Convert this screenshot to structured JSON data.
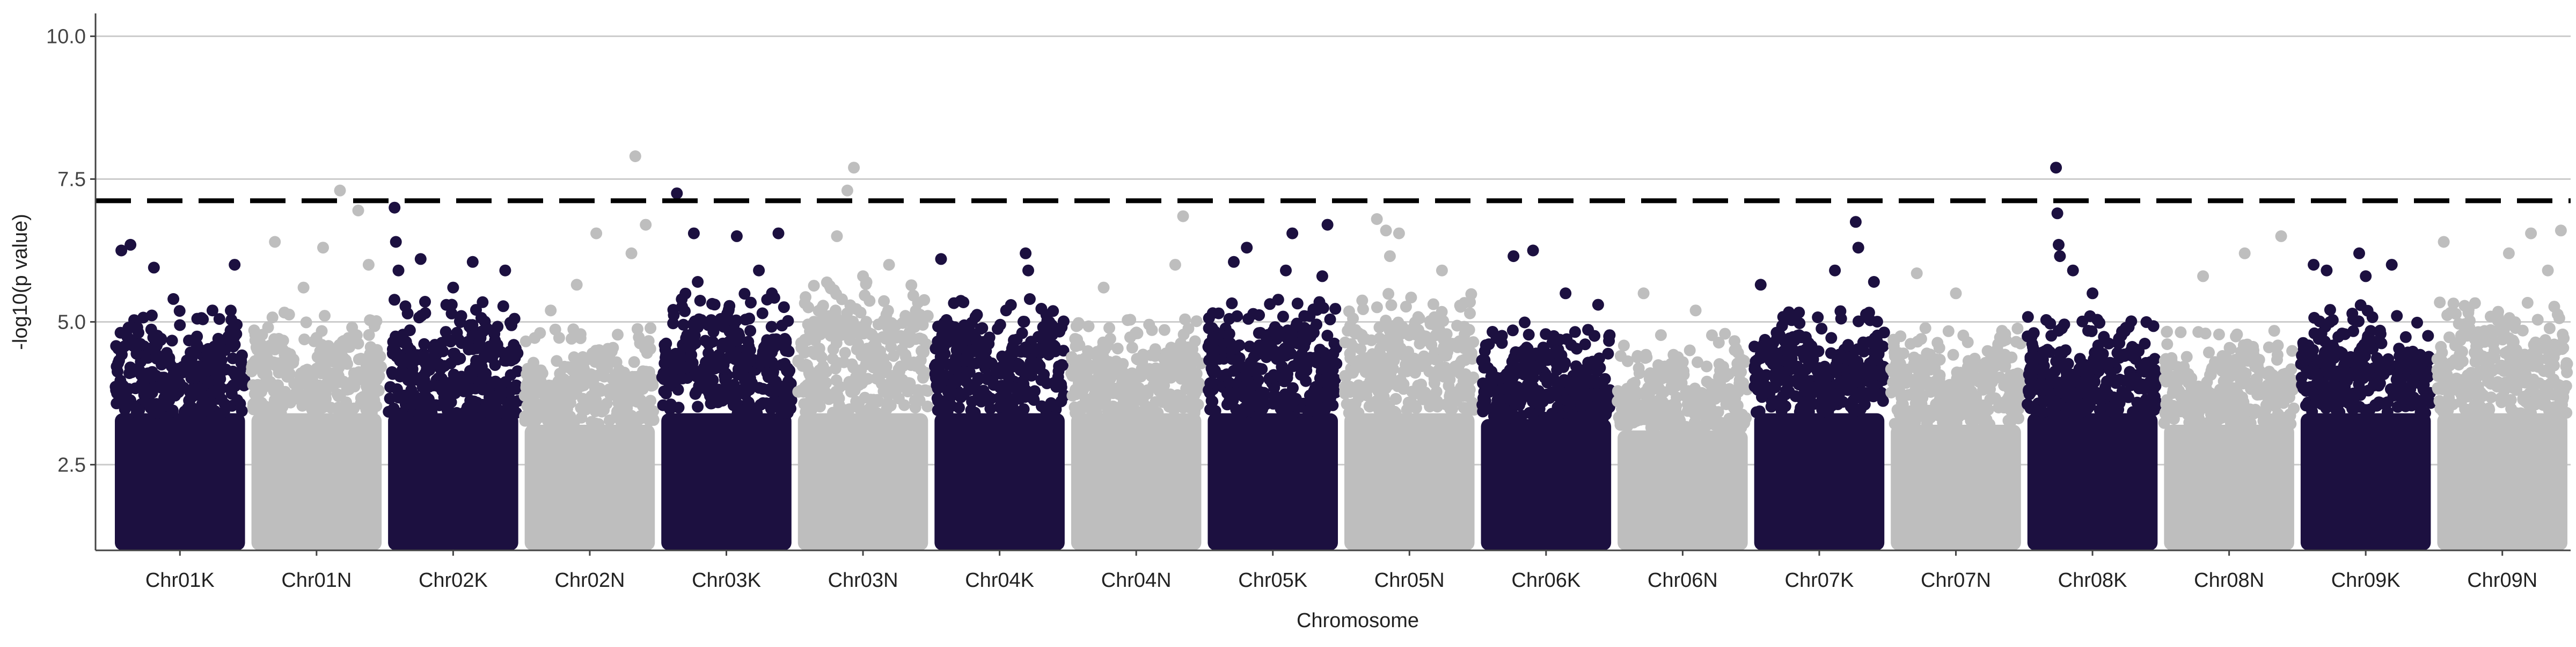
{
  "chart_data": {
    "type": "scatter",
    "title": "",
    "xlabel": "Chromosome",
    "ylabel": "-log10(p value)",
    "ylim": [
      1.0,
      10.4
    ],
    "yticks": [
      "2.5",
      "5.0",
      "7.5",
      "10.0"
    ],
    "ytick_values": [
      2.5,
      5.0,
      7.5,
      10.0
    ],
    "significance_threshold": 7.12,
    "grid": "horizontal major gridlines only",
    "legend": "none",
    "colors": {
      "odd": "#1c1040",
      "even": "#bebebe",
      "threshold": "#000000",
      "grid": "#cccccc",
      "axis": "#444444"
    },
    "categories": [
      "Chr01K",
      "Chr01N",
      "Chr02K",
      "Chr02N",
      "Chr03K",
      "Chr03N",
      "Chr04K",
      "Chr04N",
      "Chr05K",
      "Chr05N",
      "Chr06K",
      "Chr06N",
      "Chr07K",
      "Chr07N",
      "Chr08K",
      "Chr08N",
      "Chr09K",
      "Chr09N"
    ],
    "note_dense_band": "Each chromosome has a dense band of points from 1.0 up to roughly the band_top value",
    "band_top": [
      4.3,
      4.3,
      4.5,
      4.0,
      4.6,
      4.8,
      4.5,
      4.2,
      4.5,
      4.6,
      4.1,
      3.9,
      4.3,
      4.0,
      4.2,
      4.0,
      4.4,
      4.5
    ],
    "notable_points": [
      {
        "chr": "Chr01K",
        "pos": 0.05,
        "y": 6.25
      },
      {
        "chr": "Chr01K",
        "pos": 0.12,
        "y": 6.35
      },
      {
        "chr": "Chr01K",
        "pos": 0.3,
        "y": 5.95
      },
      {
        "chr": "Chr01K",
        "pos": 0.45,
        "y": 5.4
      },
      {
        "chr": "Chr01K",
        "pos": 0.75,
        "y": 5.2
      },
      {
        "chr": "Chr01K",
        "pos": 0.92,
        "y": 6.0
      },
      {
        "chr": "Chr01N",
        "pos": 0.18,
        "y": 6.4
      },
      {
        "chr": "Chr01N",
        "pos": 0.55,
        "y": 6.3
      },
      {
        "chr": "Chr01N",
        "pos": 0.68,
        "y": 7.3
      },
      {
        "chr": "Chr01N",
        "pos": 0.82,
        "y": 6.95
      },
      {
        "chr": "Chr01N",
        "pos": 0.9,
        "y": 6.0
      },
      {
        "chr": "Chr01N",
        "pos": 0.4,
        "y": 5.6
      },
      {
        "chr": "Chr02K",
        "pos": 0.05,
        "y": 7.0
      },
      {
        "chr": "Chr02K",
        "pos": 0.06,
        "y": 6.4
      },
      {
        "chr": "Chr02K",
        "pos": 0.08,
        "y": 5.9
      },
      {
        "chr": "Chr02K",
        "pos": 0.25,
        "y": 6.1
      },
      {
        "chr": "Chr02K",
        "pos": 0.65,
        "y": 6.05
      },
      {
        "chr": "Chr02K",
        "pos": 0.9,
        "y": 5.9
      },
      {
        "chr": "Chr02K",
        "pos": 0.5,
        "y": 5.6
      },
      {
        "chr": "Chr02N",
        "pos": 0.2,
        "y": 5.2
      },
      {
        "chr": "Chr02N",
        "pos": 0.4,
        "y": 5.65
      },
      {
        "chr": "Chr02N",
        "pos": 0.55,
        "y": 6.55
      },
      {
        "chr": "Chr02N",
        "pos": 0.82,
        "y": 6.2
      },
      {
        "chr": "Chr02N",
        "pos": 0.85,
        "y": 7.9
      },
      {
        "chr": "Chr02N",
        "pos": 0.93,
        "y": 6.7
      },
      {
        "chr": "Chr03K",
        "pos": 0.12,
        "y": 7.25
      },
      {
        "chr": "Chr03K",
        "pos": 0.25,
        "y": 6.55
      },
      {
        "chr": "Chr03K",
        "pos": 0.28,
        "y": 5.7
      },
      {
        "chr": "Chr03K",
        "pos": 0.58,
        "y": 6.5
      },
      {
        "chr": "Chr03K",
        "pos": 0.75,
        "y": 5.9
      },
      {
        "chr": "Chr03K",
        "pos": 0.9,
        "y": 6.55
      },
      {
        "chr": "Chr03K",
        "pos": 0.85,
        "y": 5.5
      },
      {
        "chr": "Chr03N",
        "pos": 0.3,
        "y": 6.5
      },
      {
        "chr": "Chr03N",
        "pos": 0.38,
        "y": 7.3
      },
      {
        "chr": "Chr03N",
        "pos": 0.43,
        "y": 7.7
      },
      {
        "chr": "Chr03N",
        "pos": 0.7,
        "y": 6.0
      },
      {
        "chr": "Chr03N",
        "pos": 0.5,
        "y": 5.8
      },
      {
        "chr": "Chr04K",
        "pos": 0.05,
        "y": 6.1
      },
      {
        "chr": "Chr04K",
        "pos": 0.7,
        "y": 6.2
      },
      {
        "chr": "Chr04K",
        "pos": 0.72,
        "y": 5.9
      },
      {
        "chr": "Chr04K",
        "pos": 0.55,
        "y": 5.2
      },
      {
        "chr": "Chr04N",
        "pos": 0.25,
        "y": 5.6
      },
      {
        "chr": "Chr04N",
        "pos": 0.8,
        "y": 6.0
      },
      {
        "chr": "Chr04N",
        "pos": 0.86,
        "y": 6.85
      },
      {
        "chr": "Chr05K",
        "pos": 0.2,
        "y": 6.05
      },
      {
        "chr": "Chr05K",
        "pos": 0.3,
        "y": 6.3
      },
      {
        "chr": "Chr05K",
        "pos": 0.6,
        "y": 5.9
      },
      {
        "chr": "Chr05K",
        "pos": 0.65,
        "y": 6.55
      },
      {
        "chr": "Chr05K",
        "pos": 0.88,
        "y": 5.8
      },
      {
        "chr": "Chr05K",
        "pos": 0.92,
        "y": 6.7
      },
      {
        "chr": "Chr05N",
        "pos": 0.25,
        "y": 6.8
      },
      {
        "chr": "Chr05N",
        "pos": 0.32,
        "y": 6.6
      },
      {
        "chr": "Chr05N",
        "pos": 0.35,
        "y": 6.15
      },
      {
        "chr": "Chr05N",
        "pos": 0.42,
        "y": 6.55
      },
      {
        "chr": "Chr05N",
        "pos": 0.75,
        "y": 5.9
      },
      {
        "chr": "Chr06K",
        "pos": 0.25,
        "y": 6.15
      },
      {
        "chr": "Chr06K",
        "pos": 0.4,
        "y": 6.25
      },
      {
        "chr": "Chr06K",
        "pos": 0.65,
        "y": 5.5
      },
      {
        "chr": "Chr06K",
        "pos": 0.9,
        "y": 5.3
      },
      {
        "chr": "Chr06N",
        "pos": 0.2,
        "y": 5.5
      },
      {
        "chr": "Chr06N",
        "pos": 0.6,
        "y": 5.2
      },
      {
        "chr": "Chr07K",
        "pos": 0.05,
        "y": 5.65
      },
      {
        "chr": "Chr07K",
        "pos": 0.62,
        "y": 5.9
      },
      {
        "chr": "Chr07K",
        "pos": 0.78,
        "y": 6.75
      },
      {
        "chr": "Chr07K",
        "pos": 0.8,
        "y": 6.3
      },
      {
        "chr": "Chr07K",
        "pos": 0.92,
        "y": 5.7
      },
      {
        "chr": "Chr07N",
        "pos": 0.2,
        "y": 5.85
      },
      {
        "chr": "Chr07N",
        "pos": 0.5,
        "y": 5.5
      },
      {
        "chr": "Chr08K",
        "pos": 0.22,
        "y": 7.7
      },
      {
        "chr": "Chr08K",
        "pos": 0.23,
        "y": 6.9
      },
      {
        "chr": "Chr08K",
        "pos": 0.24,
        "y": 6.35
      },
      {
        "chr": "Chr08K",
        "pos": 0.25,
        "y": 6.15
      },
      {
        "chr": "Chr08K",
        "pos": 0.35,
        "y": 5.9
      },
      {
        "chr": "Chr08K",
        "pos": 0.5,
        "y": 5.5
      },
      {
        "chr": "Chr08N",
        "pos": 0.3,
        "y": 5.8
      },
      {
        "chr": "Chr08N",
        "pos": 0.62,
        "y": 6.2
      },
      {
        "chr": "Chr08N",
        "pos": 0.9,
        "y": 6.5
      },
      {
        "chr": "Chr09K",
        "pos": 0.1,
        "y": 6.0
      },
      {
        "chr": "Chr09K",
        "pos": 0.2,
        "y": 5.9
      },
      {
        "chr": "Chr09K",
        "pos": 0.45,
        "y": 6.2
      },
      {
        "chr": "Chr09K",
        "pos": 0.7,
        "y": 6.0
      },
      {
        "chr": "Chr09K",
        "pos": 0.5,
        "y": 5.8
      },
      {
        "chr": "Chr09N",
        "pos": 0.05,
        "y": 6.4
      },
      {
        "chr": "Chr09N",
        "pos": 0.55,
        "y": 6.2
      },
      {
        "chr": "Chr09N",
        "pos": 0.72,
        "y": 6.55
      },
      {
        "chr": "Chr09N",
        "pos": 0.95,
        "y": 6.6
      },
      {
        "chr": "Chr09N",
        "pos": 0.85,
        "y": 5.9
      }
    ]
  }
}
